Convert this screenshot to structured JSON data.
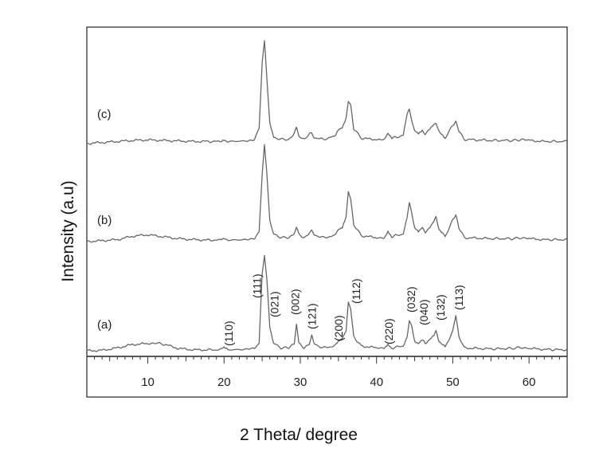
{
  "chart_data": {
    "type": "line",
    "xlabel": "2 Theta/ degree",
    "ylabel": "Intensity (a.u)",
    "xlim": [
      2,
      65
    ],
    "x_ticks": [
      10,
      20,
      30,
      40,
      50,
      60
    ],
    "x_tick_labels": [
      "10",
      "20",
      "30",
      "40",
      "50",
      "60"
    ],
    "grid": false,
    "stacked": true,
    "series": [
      {
        "name": "(a)",
        "points": [
          [
            2,
            0.0
          ],
          [
            4,
            0.5
          ],
          [
            6,
            3.0
          ],
          [
            8,
            6.5
          ],
          [
            10,
            7.5
          ],
          [
            11,
            8.0
          ],
          [
            12,
            7.0
          ],
          [
            14,
            2.5
          ],
          [
            16,
            1.0
          ],
          [
            18,
            1.0
          ],
          [
            19.5,
            1.0
          ],
          [
            20,
            3.0
          ],
          [
            20.5,
            1.0
          ],
          [
            23,
            1.5
          ],
          [
            24,
            3.0
          ],
          [
            24.6,
            8.0
          ],
          [
            25.0,
            80.0
          ],
          [
            25.3,
            100.0
          ],
          [
            25.6,
            75.0
          ],
          [
            26.0,
            25.0
          ],
          [
            26.5,
            8.0
          ],
          [
            27.5,
            3.0
          ],
          [
            28.5,
            3.0
          ],
          [
            29.2,
            8.0
          ],
          [
            29.5,
            28.0
          ],
          [
            29.8,
            8.0
          ],
          [
            30.5,
            3.0
          ],
          [
            31.2,
            8.0
          ],
          [
            31.5,
            16.0
          ],
          [
            31.8,
            7.0
          ],
          [
            33,
            3.0
          ],
          [
            34.5,
            5.0
          ],
          [
            35.0,
            9.0
          ],
          [
            35.5,
            12.0
          ],
          [
            36.0,
            20.0
          ],
          [
            36.3,
            50.0
          ],
          [
            36.6,
            45.0
          ],
          [
            37.0,
            15.0
          ],
          [
            38,
            5.0
          ],
          [
            40,
            3.0
          ],
          [
            41,
            3.0
          ],
          [
            41.5,
            7.0
          ],
          [
            42,
            3.0
          ],
          [
            43.5,
            5.0
          ],
          [
            44.0,
            15.0
          ],
          [
            44.3,
            31.0
          ],
          [
            44.6,
            25.0
          ],
          [
            45.0,
            10.0
          ],
          [
            45.5,
            8.0
          ],
          [
            46.0,
            12.0
          ],
          [
            46.4,
            8.0
          ],
          [
            47.0,
            12.0
          ],
          [
            47.5,
            16.0
          ],
          [
            47.8,
            20.0
          ],
          [
            48.2,
            10.0
          ],
          [
            49,
            4.0
          ],
          [
            50.0,
            20.0
          ],
          [
            50.4,
            37.0
          ],
          [
            50.8,
            15.0
          ],
          [
            51.5,
            3.0
          ],
          [
            55,
            2.0
          ],
          [
            58,
            2.5
          ],
          [
            59,
            3.5
          ],
          [
            60,
            2.5
          ],
          [
            62,
            1.5
          ],
          [
            65,
            1.0
          ]
        ]
      },
      {
        "name": "(b)",
        "points": [
          [
            2,
            0.0
          ],
          [
            4,
            1.0
          ],
          [
            6,
            2.0
          ],
          [
            8,
            5.5
          ],
          [
            10,
            7.0
          ],
          [
            12,
            5.0
          ],
          [
            14,
            3.0
          ],
          [
            16,
            2.0
          ],
          [
            18,
            1.5
          ],
          [
            19.5,
            1.5
          ],
          [
            20,
            3.0
          ],
          [
            20.5,
            1.5
          ],
          [
            23,
            2.0
          ],
          [
            24,
            3.5
          ],
          [
            24.6,
            10.0
          ],
          [
            25.0,
            70.0
          ],
          [
            25.3,
            100.0
          ],
          [
            25.6,
            70.0
          ],
          [
            26.0,
            22.0
          ],
          [
            26.5,
            8.0
          ],
          [
            27.5,
            4.0
          ],
          [
            28.5,
            4.0
          ],
          [
            29.2,
            9.0
          ],
          [
            29.5,
            14.0
          ],
          [
            29.8,
            8.0
          ],
          [
            30.5,
            4.0
          ],
          [
            31.2,
            9.0
          ],
          [
            31.5,
            11.0
          ],
          [
            31.8,
            7.0
          ],
          [
            33,
            4.0
          ],
          [
            34.5,
            6.0
          ],
          [
            35.0,
            12.0
          ],
          [
            35.5,
            14.0
          ],
          [
            36.0,
            25.0
          ],
          [
            36.3,
            52.0
          ],
          [
            36.6,
            45.0
          ],
          [
            37.0,
            18.0
          ],
          [
            38,
            6.0
          ],
          [
            40,
            4.0
          ],
          [
            41,
            4.0
          ],
          [
            41.5,
            11.0
          ],
          [
            42,
            5.0
          ],
          [
            43.5,
            8.0
          ],
          [
            44.0,
            25.0
          ],
          [
            44.3,
            39.0
          ],
          [
            44.6,
            30.0
          ],
          [
            45.0,
            14.0
          ],
          [
            45.5,
            10.0
          ],
          [
            46.0,
            14.0
          ],
          [
            46.4,
            10.0
          ],
          [
            47.0,
            14.0
          ],
          [
            47.5,
            20.0
          ],
          [
            47.8,
            25.0
          ],
          [
            48.2,
            12.0
          ],
          [
            49,
            5.0
          ],
          [
            50.0,
            22.0
          ],
          [
            50.4,
            27.0
          ],
          [
            50.8,
            14.0
          ],
          [
            51.5,
            4.0
          ],
          [
            55,
            3.0
          ],
          [
            58,
            3.0
          ],
          [
            59,
            4.0
          ],
          [
            60,
            3.0
          ],
          [
            62,
            2.0
          ],
          [
            65,
            2.0
          ]
        ]
      },
      {
        "name": "(c)",
        "points": [
          [
            2,
            0.0
          ],
          [
            4,
            1.0
          ],
          [
            6,
            2.0
          ],
          [
            8,
            3.0
          ],
          [
            10,
            3.5
          ],
          [
            12,
            3.0
          ],
          [
            14,
            2.5
          ],
          [
            16,
            2.0
          ],
          [
            18,
            2.0
          ],
          [
            19.5,
            2.0
          ],
          [
            20,
            4.0
          ],
          [
            20.5,
            2.0
          ],
          [
            23,
            2.5
          ],
          [
            24,
            4.0
          ],
          [
            24.6,
            15.0
          ],
          [
            25.0,
            80.0
          ],
          [
            25.3,
            100.0
          ],
          [
            25.6,
            65.0
          ],
          [
            26.0,
            20.0
          ],
          [
            26.5,
            6.0
          ],
          [
            27.5,
            4.0
          ],
          [
            28.5,
            4.0
          ],
          [
            29.2,
            10.0
          ],
          [
            29.5,
            15.0
          ],
          [
            29.8,
            8.0
          ],
          [
            30.5,
            4.0
          ],
          [
            31.2,
            9.0
          ],
          [
            31.5,
            10.0
          ],
          [
            31.8,
            6.0
          ],
          [
            33,
            4.0
          ],
          [
            34.5,
            7.0
          ],
          [
            35.0,
            14.0
          ],
          [
            35.5,
            16.0
          ],
          [
            36.0,
            25.0
          ],
          [
            36.3,
            42.0
          ],
          [
            36.6,
            38.0
          ],
          [
            37.0,
            15.0
          ],
          [
            38,
            5.0
          ],
          [
            40,
            4.0
          ],
          [
            41,
            4.0
          ],
          [
            41.5,
            10.0
          ],
          [
            42,
            5.0
          ],
          [
            43.5,
            8.0
          ],
          [
            44.0,
            28.0
          ],
          [
            44.3,
            33.0
          ],
          [
            44.6,
            24.0
          ],
          [
            45.0,
            12.0
          ],
          [
            45.5,
            9.0
          ],
          [
            46.0,
            12.0
          ],
          [
            46.4,
            9.0
          ],
          [
            47.0,
            14.0
          ],
          [
            47.5,
            18.0
          ],
          [
            47.8,
            20.0
          ],
          [
            48.2,
            11.0
          ],
          [
            49,
            5.0
          ],
          [
            50.0,
            18.0
          ],
          [
            50.4,
            21.0
          ],
          [
            50.8,
            12.0
          ],
          [
            51.5,
            4.0
          ],
          [
            55,
            3.0
          ],
          [
            58,
            3.0
          ],
          [
            59,
            4.0
          ],
          [
            60,
            3.0
          ],
          [
            62,
            2.0
          ],
          [
            65,
            2.0
          ]
        ]
      }
    ],
    "annotations": [
      {
        "text": "(110)",
        "x": 20.6
      },
      {
        "text": "(111)",
        "x": 24.3
      },
      {
        "text": "(021)",
        "x": 26.6
      },
      {
        "text": "(002)",
        "x": 29.3
      },
      {
        "text": "(121)",
        "x": 31.5
      },
      {
        "text": "(200)",
        "x": 35.0
      },
      {
        "text": "(112)",
        "x": 37.3
      },
      {
        "text": "(220)",
        "x": 41.6
      },
      {
        "text": "(032)",
        "x": 44.5
      },
      {
        "text": "(040)",
        "x": 46.2
      },
      {
        "text": "(132)",
        "x": 48.4
      },
      {
        "text": "(113)",
        "x": 50.8
      }
    ]
  }
}
